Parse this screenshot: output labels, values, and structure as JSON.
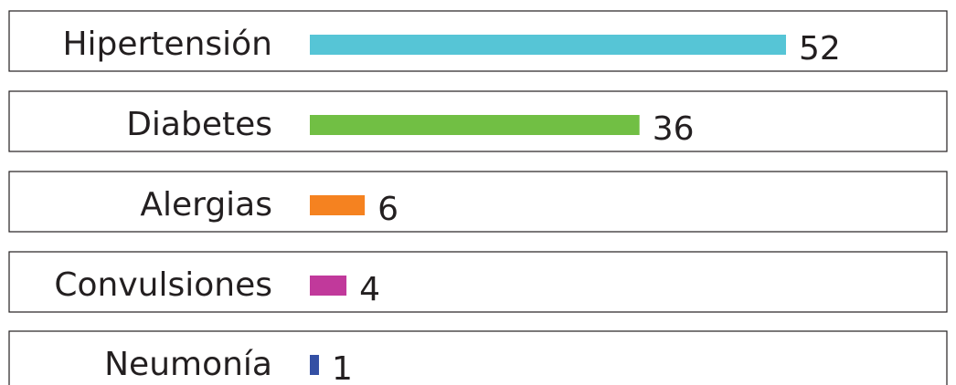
{
  "chart_data": {
    "type": "bar",
    "categories": [
      "Hipertensión",
      "Diabetes",
      "Alergias",
      "Convulsiones",
      "Neumonía"
    ],
    "values": [
      52,
      36,
      6,
      4,
      1
    ],
    "colors": [
      "#56c5d6",
      "#71bf44",
      "#f58220",
      "#c1399b",
      "#3450a4"
    ]
  }
}
